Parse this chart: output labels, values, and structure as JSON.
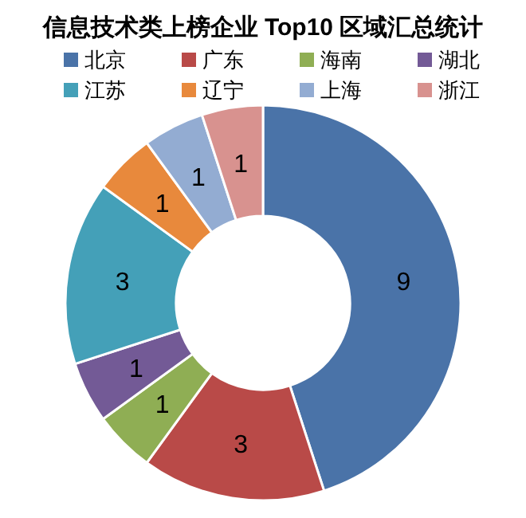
{
  "chart_data": {
    "type": "donut",
    "title": "信息技术类上榜企业 Top10 区域汇总统计",
    "categories": [
      "北京",
      "广东",
      "海南",
      "湖北",
      "江苏",
      "辽宁",
      "上海",
      "浙江"
    ],
    "values": [
      9,
      3,
      1,
      1,
      3,
      1,
      1,
      1
    ],
    "colors": [
      "#4a73a8",
      "#b94a48",
      "#8fae54",
      "#735a96",
      "#44a0b8",
      "#e8893c",
      "#93acd2",
      "#d8928f"
    ],
    "data_labels": true,
    "legend": "top"
  }
}
